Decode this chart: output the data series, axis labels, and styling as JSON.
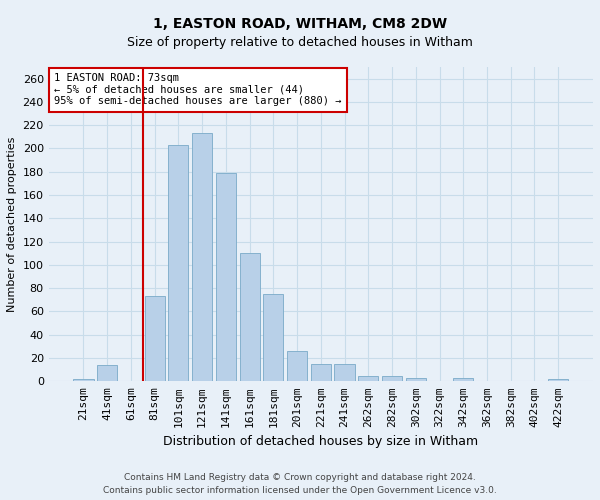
{
  "title_line1": "1, EASTON ROAD, WITHAM, CM8 2DW",
  "title_line2": "Size of property relative to detached houses in Witham",
  "xlabel": "Distribution of detached houses by size in Witham",
  "ylabel": "Number of detached properties",
  "footer_line1": "Contains HM Land Registry data © Crown copyright and database right 2024.",
  "footer_line2": "Contains public sector information licensed under the Open Government Licence v3.0.",
  "categories": [
    "21sqm",
    "41sqm",
    "61sqm",
    "81sqm",
    "101sqm",
    "121sqm",
    "141sqm",
    "161sqm",
    "181sqm",
    "201sqm",
    "221sqm",
    "241sqm",
    "262sqm",
    "282sqm",
    "302sqm",
    "322sqm",
    "342sqm",
    "362sqm",
    "382sqm",
    "402sqm",
    "422sqm"
  ],
  "values": [
    2,
    14,
    0,
    73,
    203,
    213,
    179,
    110,
    75,
    26,
    15,
    15,
    5,
    5,
    3,
    0,
    3,
    0,
    0,
    0,
    2
  ],
  "bar_color": "#b8d0e8",
  "bar_edge_color": "#7aaac8",
  "grid_color": "#c8dcea",
  "background_color": "#e8f0f8",
  "annotation_box_color": "#ffffff",
  "annotation_border_color": "#cc0000",
  "vline_color": "#cc0000",
  "vline_bar_index": 3,
  "annotation_text_line1": "1 EASTON ROAD: 73sqm",
  "annotation_text_line2": "← 5% of detached houses are smaller (44)",
  "annotation_text_line3": "95% of semi-detached houses are larger (880) →",
  "ylim": [
    0,
    270
  ],
  "yticks": [
    0,
    20,
    40,
    60,
    80,
    100,
    120,
    140,
    160,
    180,
    200,
    220,
    240,
    260
  ],
  "title1_fontsize": 10,
  "title2_fontsize": 9,
  "xlabel_fontsize": 9,
  "ylabel_fontsize": 8,
  "tick_fontsize": 8,
  "ann_fontsize": 7.5,
  "footer_fontsize": 6.5
}
